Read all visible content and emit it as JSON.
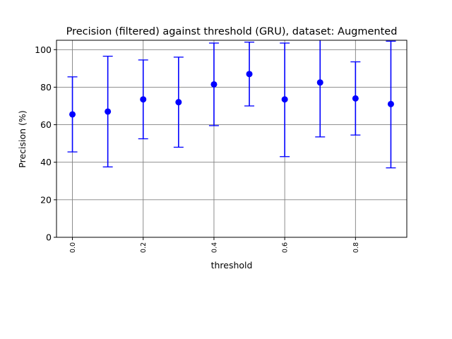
{
  "chart_data": {
    "type": "scatter",
    "title": "Precision (filtered) against threshold (GRU), dataset: Augmented",
    "xlabel": "threshold",
    "ylabel": "Precision (%)",
    "x_tick_labels": [
      "0.0",
      "0.2",
      "0.4",
      "0.6",
      "0.8"
    ],
    "y_tick_labels": [
      "0",
      "20",
      "40",
      "60",
      "80",
      "100"
    ],
    "x_ticks": [
      0.0,
      0.2,
      0.4,
      0.6,
      0.8
    ],
    "y_ticks": [
      0,
      20,
      40,
      60,
      80,
      100
    ],
    "xlim": [
      -0.045,
      0.945
    ],
    "ylim": [
      0,
      105
    ],
    "grid": true,
    "color": "#0000ff",
    "series": [
      {
        "x": [
          0.0,
          0.1,
          0.2,
          0.3,
          0.4,
          0.5,
          0.6,
          0.7,
          0.8,
          0.9
        ],
        "y": [
          65.5,
          67.0,
          73.5,
          72.0,
          81.5,
          87.0,
          73.5,
          82.5,
          74.0,
          71.0
        ],
        "err_low": [
          45.5,
          37.5,
          52.5,
          48.0,
          59.5,
          70.0,
          43.0,
          53.5,
          54.5,
          37.0
        ],
        "err_high": [
          85.5,
          96.5,
          94.5,
          96.0,
          103.5,
          104.0,
          103.5,
          105.5,
          93.5,
          104.5
        ]
      }
    ]
  }
}
